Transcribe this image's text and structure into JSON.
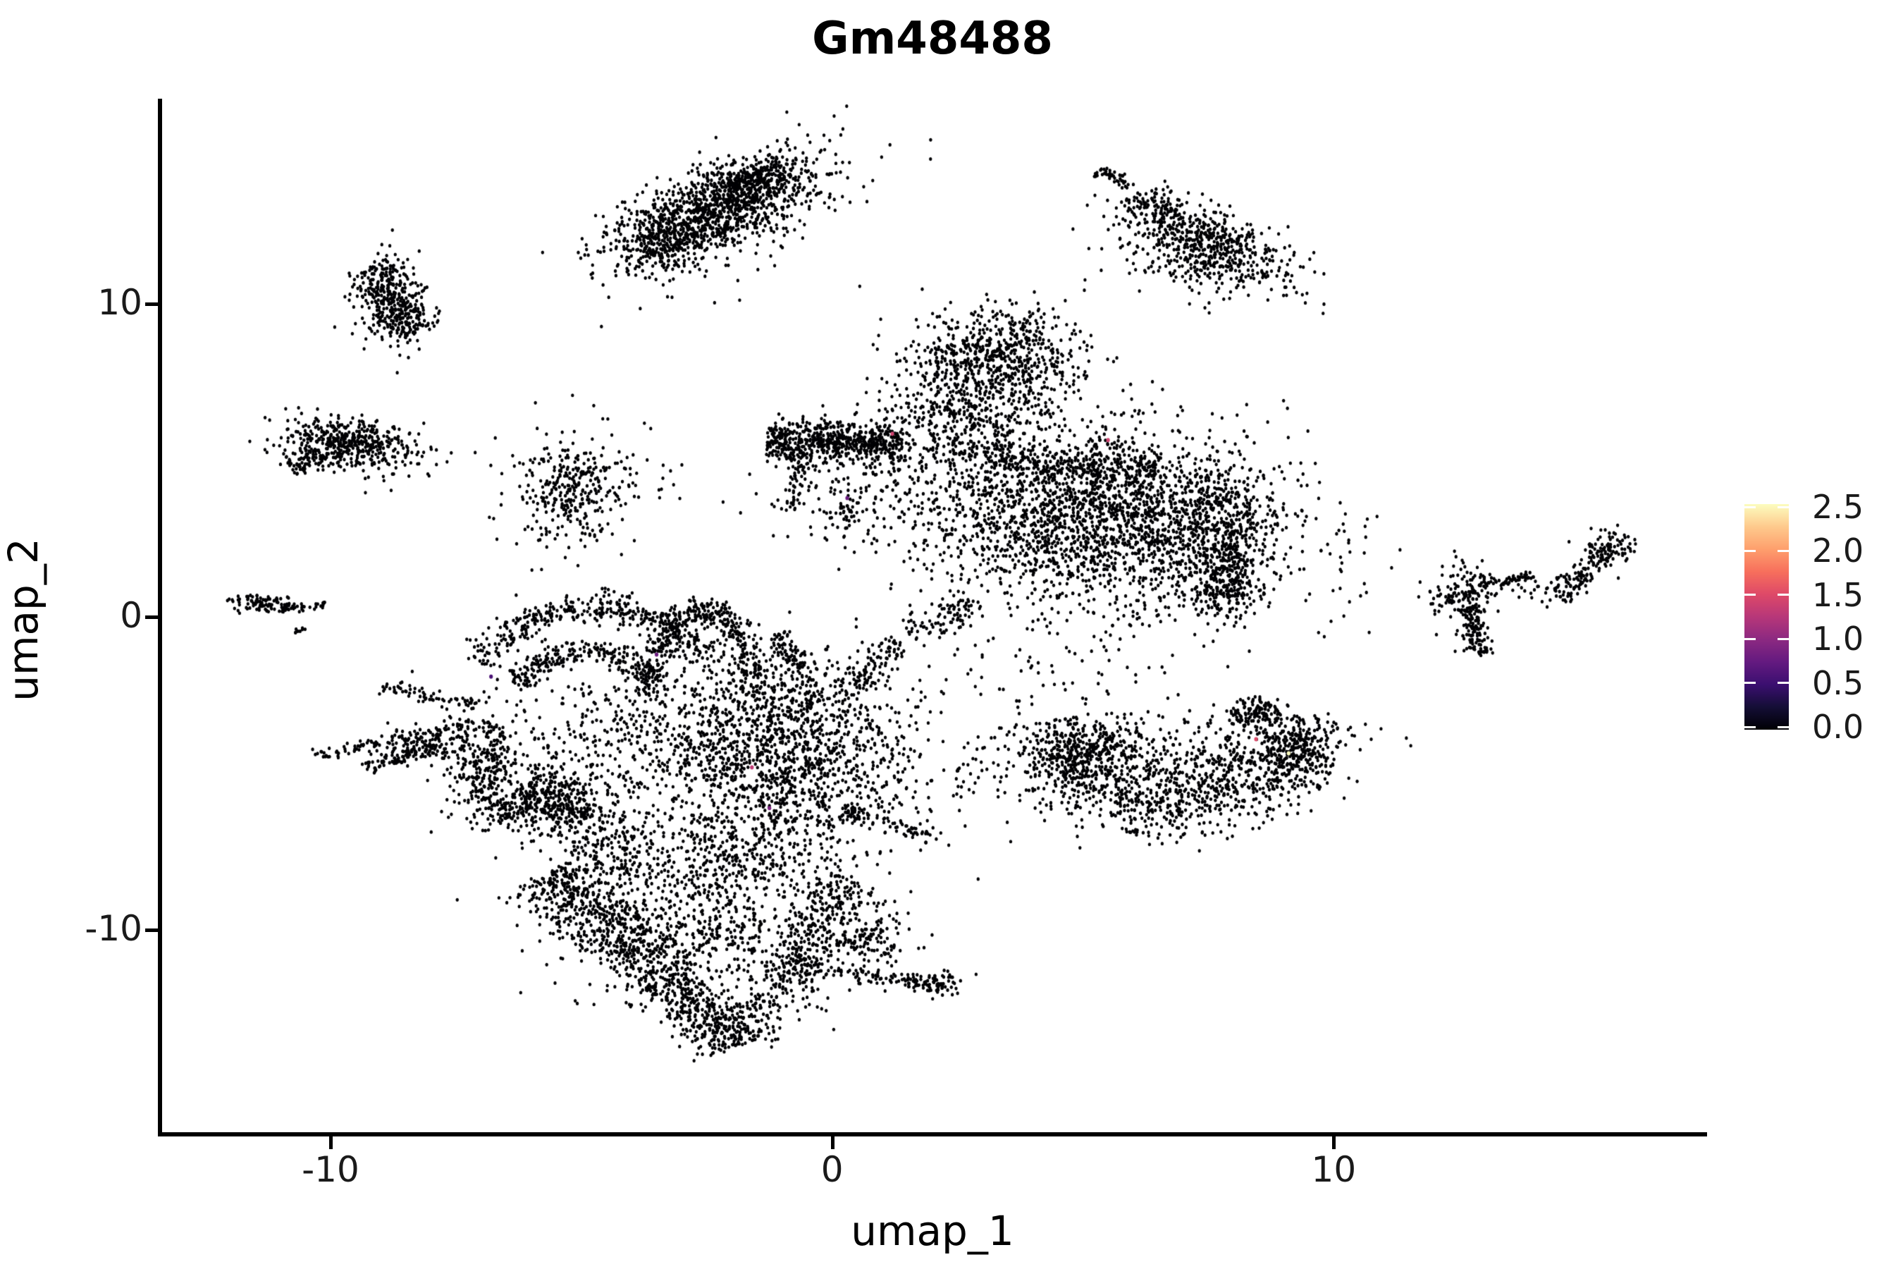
{
  "title": "Gm48488",
  "axes": {
    "x": {
      "label": "umap_1",
      "tick_labels": [
        "-10",
        "0",
        "10"
      ],
      "tick_values": [
        -10,
        0,
        10
      ]
    },
    "y": {
      "label": "umap_2",
      "tick_labels": [
        "-10",
        "0",
        "10"
      ],
      "tick_values": [
        -10,
        0,
        10
      ]
    }
  },
  "colorbar": {
    "tick_labels": [
      "2.5",
      "2.0",
      "1.5",
      "1.0",
      "0.5",
      "0.0"
    ],
    "min": 0.0,
    "max": 2.5,
    "colormap": "magma",
    "stops": [
      "#000004",
      "#140e36",
      "#3b0f70",
      "#641a80",
      "#8c2981",
      "#b73779",
      "#de4968",
      "#f76f5c",
      "#fe9f6d",
      "#feca8d",
      "#fcfdbf"
    ]
  },
  "chart_data": {
    "type": "scatter",
    "title": "Gm48488",
    "xlabel": "umap_1",
    "ylabel": "umap_2",
    "xlim": [
      -13.4,
      17.4
    ],
    "ylim": [
      -16.45,
      16.55
    ],
    "x_ticks": [
      -10,
      0,
      10
    ],
    "y_ticks": [
      -10,
      0,
      10
    ],
    "grid": false,
    "legend_position": "right",
    "color_scale": {
      "name": "magma",
      "domain": [
        0.0,
        2.5
      ],
      "zero_color": "#000004",
      "max_color": "#fcfdbf"
    },
    "point_color_value": 0,
    "seed": 1337,
    "clusters": [
      {
        "type": "blob",
        "x": -2.3,
        "y": 13.0,
        "sx": 1.25,
        "sy": 0.55,
        "rot": 38,
        "n": 1100
      },
      {
        "type": "blob",
        "x": -1.5,
        "y": 13.95,
        "sx": 0.5,
        "sy": 0.3,
        "rot": 38,
        "n": 220
      },
      {
        "type": "blob",
        "x": -3.35,
        "y": 11.75,
        "sx": 0.45,
        "sy": 0.28,
        "rot": 38,
        "n": 140
      },
      {
        "type": "blob",
        "x": -2.2,
        "y": 12.7,
        "sx": 1.5,
        "sy": 0.85,
        "rot": 38,
        "n": 160
      },
      {
        "type": "blob",
        "x": -8.9,
        "y": 10.35,
        "sx": 0.33,
        "sy": 0.55,
        "rot": 5,
        "n": 260
      },
      {
        "type": "blob",
        "x": -8.55,
        "y": 9.55,
        "sx": 0.3,
        "sy": 0.32,
        "rot": 0,
        "n": 130
      },
      {
        "type": "blob",
        "x": -8.75,
        "y": 10.0,
        "sx": 0.5,
        "sy": 0.85,
        "rot": 5,
        "n": 60
      },
      {
        "type": "streak",
        "x1": 5.35,
        "y1": 14.3,
        "x2": 5.9,
        "y2": 13.8,
        "th": 0.09,
        "n": 40
      },
      {
        "type": "streak",
        "x1": 6.05,
        "y1": 13.55,
        "x2": 6.85,
        "y2": 12.75,
        "th": 0.22,
        "n": 70
      },
      {
        "type": "blob",
        "x": 7.55,
        "y": 12.0,
        "sx": 1.05,
        "sy": 0.45,
        "rot": -38,
        "n": 520
      },
      {
        "type": "blob",
        "x": 7.1,
        "y": 11.35,
        "sx": 0.85,
        "sy": 0.5,
        "rot": -30,
        "n": 150
      },
      {
        "type": "blob",
        "x": -9.6,
        "y": 5.5,
        "sx": 0.72,
        "sy": 0.4,
        "rot": -12,
        "n": 470
      },
      {
        "type": "streak",
        "x1": -10.85,
        "y1": 4.8,
        "x2": -10.05,
        "y2": 5.15,
        "th": 0.18,
        "n": 70
      },
      {
        "type": "blob",
        "x": -5.15,
        "y": 4.1,
        "sx": 0.5,
        "sy": 0.75,
        "rot": 0,
        "n": 250
      },
      {
        "type": "blob",
        "x": -5.1,
        "y": 4.0,
        "sx": 0.95,
        "sy": 1.15,
        "rot": 0,
        "n": 110
      },
      {
        "type": "blob",
        "x": -11.35,
        "y": 0.45,
        "sx": 0.3,
        "sy": 0.15,
        "rot": -10,
        "n": 85
      },
      {
        "type": "streak",
        "x1": -11.0,
        "y1": 0.25,
        "x2": -10.05,
        "y2": 0.4,
        "th": 0.07,
        "n": 40
      },
      {
        "type": "streak",
        "x1": -10.72,
        "y1": -0.25,
        "x2": -10.63,
        "y2": -0.52,
        "th": 0.05,
        "n": 8
      },
      {
        "type": "blob",
        "x": 3.2,
        "y": 8.1,
        "sx": 0.9,
        "sy": 0.8,
        "rot": 0,
        "n": 680
      },
      {
        "type": "blob",
        "x": 3.6,
        "y": 9.1,
        "sx": 0.6,
        "sy": 0.45,
        "rot": 20,
        "n": 80
      },
      {
        "type": "streak",
        "x1": -1.3,
        "y1": 5.65,
        "x2": 1.4,
        "y2": 5.55,
        "th": 0.32,
        "n": 600
      },
      {
        "type": "blob",
        "x": 2.4,
        "y": 6.1,
        "sx": 0.75,
        "sy": 0.75,
        "rot": 0,
        "n": 320
      },
      {
        "type": "blob",
        "x": 0.9,
        "y": 4.3,
        "sx": 1.1,
        "sy": 1.1,
        "rot": 0,
        "n": 170
      },
      {
        "type": "streak",
        "x1": -0.6,
        "y1": 5.1,
        "x2": -0.85,
        "y2": 3.4,
        "th": 0.12,
        "n": 60
      },
      {
        "type": "blob",
        "x": 0.25,
        "y": 3.3,
        "sx": 0.3,
        "sy": 0.25,
        "rot": 0,
        "n": 40
      },
      {
        "type": "blob",
        "x": 5.2,
        "y": 3.1,
        "sx": 1.85,
        "sy": 1.4,
        "rot": -6,
        "n": 2300
      },
      {
        "type": "blob",
        "x": 7.65,
        "y": 2.7,
        "sx": 0.55,
        "sy": 1.0,
        "rot": 0,
        "n": 420
      },
      {
        "type": "blob",
        "x": 7.9,
        "y": 1.0,
        "sx": 0.3,
        "sy": 0.6,
        "rot": 0,
        "n": 200
      },
      {
        "type": "streak",
        "x1": 3.0,
        "y1": 5.05,
        "x2": 6.5,
        "y2": 4.7,
        "th": 0.3,
        "n": 330
      },
      {
        "type": "streak",
        "x1": 1.5,
        "y1": -0.55,
        "x2": 2.85,
        "y2": 0.55,
        "th": 0.25,
        "n": 90
      },
      {
        "type": "blob",
        "x": 4.3,
        "y": -1.7,
        "sx": 1.3,
        "sy": 0.8,
        "rot": 0,
        "n": 55
      },
      {
        "type": "blob",
        "x": 10.3,
        "y": 1.1,
        "sx": 1.1,
        "sy": 0.7,
        "rot": 0,
        "n": 25
      },
      {
        "type": "blob",
        "x": 12.6,
        "y": 0.75,
        "sx": 0.3,
        "sy": 0.5,
        "rot": 0,
        "n": 150
      },
      {
        "type": "streak",
        "x1": 12.9,
        "y1": 1.05,
        "x2": 14.0,
        "y2": 1.3,
        "th": 0.1,
        "n": 55
      },
      {
        "type": "streak",
        "x1": 12.72,
        "y1": 0.3,
        "x2": 12.95,
        "y2": -1.25,
        "th": 0.14,
        "n": 110
      },
      {
        "type": "streak",
        "x1": 14.45,
        "y1": 0.6,
        "x2": 15.55,
        "y2": 2.25,
        "th": 0.18,
        "n": 130
      },
      {
        "type": "blob",
        "x": 15.5,
        "y": 2.3,
        "sx": 0.28,
        "sy": 0.28,
        "rot": 0,
        "n": 60
      },
      {
        "type": "blob",
        "x": 14.15,
        "y": 0.75,
        "sx": 0.3,
        "sy": 0.2,
        "rot": 0,
        "n": 20
      },
      {
        "type": "arc",
        "x": 6.85,
        "y": -2.75,
        "rx": 2.55,
        "ry": 3.1,
        "a1": 190,
        "a2": 352,
        "th": 0.7,
        "n": 1250
      },
      {
        "type": "streak",
        "x1": 8.05,
        "y1": -3.25,
        "x2": 8.8,
        "y2": -2.8,
        "th": 0.22,
        "n": 110
      },
      {
        "type": "blob",
        "x": 6.6,
        "y": -4.05,
        "sx": 1.2,
        "sy": 0.6,
        "rot": 0,
        "n": 130
      },
      {
        "type": "blob",
        "x": 9.3,
        "y": -4.3,
        "sx": 0.32,
        "sy": 0.5,
        "rot": 0,
        "n": 140
      },
      {
        "type": "blob",
        "x": 4.85,
        "y": -4.5,
        "sx": 0.4,
        "sy": 0.45,
        "rot": 0,
        "n": 150
      },
      {
        "type": "streak",
        "x1": -8.95,
        "y1": -2.2,
        "x2": -7.1,
        "y2": -2.85,
        "th": 0.12,
        "n": 70
      },
      {
        "type": "streak",
        "x1": -10.3,
        "y1": -4.45,
        "x2": -7.1,
        "y2": -3.35,
        "th": 0.14,
        "n": 110
      },
      {
        "type": "streak",
        "x1": -9.3,
        "y1": -4.85,
        "x2": -7.75,
        "y2": -4.1,
        "th": 0.12,
        "n": 60
      },
      {
        "type": "blob",
        "x": -8.15,
        "y": -4.15,
        "sx": 0.5,
        "sy": 0.3,
        "rot": 25,
        "n": 130
      },
      {
        "type": "arc",
        "x": -4.75,
        "y": -2.0,
        "rx": 2.25,
        "ry": 2.3,
        "a1": 15,
        "a2": 168,
        "th": 0.22,
        "n": 400
      },
      {
        "type": "arc",
        "x": -4.9,
        "y": -2.7,
        "rx": 1.5,
        "ry": 1.6,
        "a1": 25,
        "a2": 160,
        "th": 0.2,
        "n": 240
      },
      {
        "type": "arc",
        "x": -2.6,
        "y": -3.2,
        "rx": 1.12,
        "ry": 3.4,
        "a1": 12,
        "a2": 168,
        "th": 0.2,
        "n": 400
      },
      {
        "type": "streak",
        "x1": -1.05,
        "y1": -0.5,
        "x2": -0.35,
        "y2": -2.75,
        "th": 0.14,
        "n": 110
      },
      {
        "type": "arc",
        "x": -4.5,
        "y": -4.8,
        "rx": 2.5,
        "ry": 2.5,
        "a1": 148,
        "a2": 225,
        "th": 0.3,
        "n": 300
      },
      {
        "type": "streak",
        "x1": -6.1,
        "y1": -5.3,
        "x2": -4.9,
        "y2": -6.5,
        "th": 0.35,
        "n": 200
      },
      {
        "type": "blob",
        "x": -3.7,
        "y": -3.7,
        "sx": 1.6,
        "sy": 1.1,
        "rot": -15,
        "n": 420
      },
      {
        "type": "blob",
        "x": -5.7,
        "y": -5.6,
        "sx": 0.9,
        "sy": 0.8,
        "rot": 0,
        "n": 250
      },
      {
        "type": "blob",
        "x": -0.9,
        "y": -4.3,
        "sx": 1.35,
        "sy": 1.6,
        "rot": 12,
        "n": 1450
      },
      {
        "type": "streak",
        "x1": 0.2,
        "y1": -2.45,
        "x2": 1.35,
        "y2": -0.75,
        "th": 0.2,
        "n": 100
      },
      {
        "type": "streak",
        "x1": 0.2,
        "y1": -6.2,
        "x2": 2.0,
        "y2": -6.95,
        "th": 0.15,
        "n": 80
      },
      {
        "type": "blob",
        "x": 3.2,
        "y": -5.3,
        "sx": 0.8,
        "sy": 0.5,
        "rot": 0,
        "n": 40
      },
      {
        "type": "streak",
        "x1": -5.65,
        "y1": -8.15,
        "x2": -3.6,
        "y2": -11.0,
        "th": 0.5,
        "n": 550
      },
      {
        "type": "streak",
        "x1": -3.6,
        "y1": -11.0,
        "x2": -1.85,
        "y2": -13.7,
        "th": 0.4,
        "n": 450
      },
      {
        "type": "streak",
        "x1": 0.35,
        "y1": -8.35,
        "x2": -1.7,
        "y2": -13.45,
        "th": 0.35,
        "n": 380
      },
      {
        "type": "blob",
        "x": -2.4,
        "y": -9.7,
        "sx": 1.5,
        "sy": 1.4,
        "rot": 0,
        "n": 650
      },
      {
        "type": "blob",
        "x": -1.9,
        "y": -7.4,
        "sx": 1.0,
        "sy": 0.8,
        "rot": 0,
        "n": 300
      },
      {
        "type": "blob",
        "x": 0.75,
        "y": -10.3,
        "sx": 0.4,
        "sy": 0.35,
        "rot": 0,
        "n": 110
      },
      {
        "type": "streak",
        "x1": -0.8,
        "y1": -11.15,
        "x2": 2.0,
        "y2": -11.7,
        "th": 0.13,
        "n": 120
      },
      {
        "type": "blob",
        "x": 2.1,
        "y": -11.75,
        "sx": 0.25,
        "sy": 0.18,
        "rot": 0,
        "n": 60
      },
      {
        "type": "blob",
        "x": -4.4,
        "y": -7.3,
        "sx": 0.8,
        "sy": 0.6,
        "rot": -30,
        "n": 220
      }
    ],
    "expressing_cells": [
      {
        "x": -3.5,
        "y": -1.2,
        "value": 0.8
      },
      {
        "x": -6.8,
        "y": -1.9,
        "value": 0.6
      },
      {
        "x": -1.6,
        "y": -4.8,
        "value": 1.3
      },
      {
        "x": -1.25,
        "y": -6.1,
        "value": 0.9
      },
      {
        "x": 8.45,
        "y": -3.9,
        "value": 1.5
      },
      {
        "x": 9.1,
        "y": -4.35,
        "value": 2.5
      },
      {
        "x": 1.2,
        "y": 5.85,
        "value": 1.4
      },
      {
        "x": 0.3,
        "y": 3.8,
        "value": 0.8
      },
      {
        "x": 5.5,
        "y": 5.65,
        "value": 1.4
      }
    ]
  }
}
